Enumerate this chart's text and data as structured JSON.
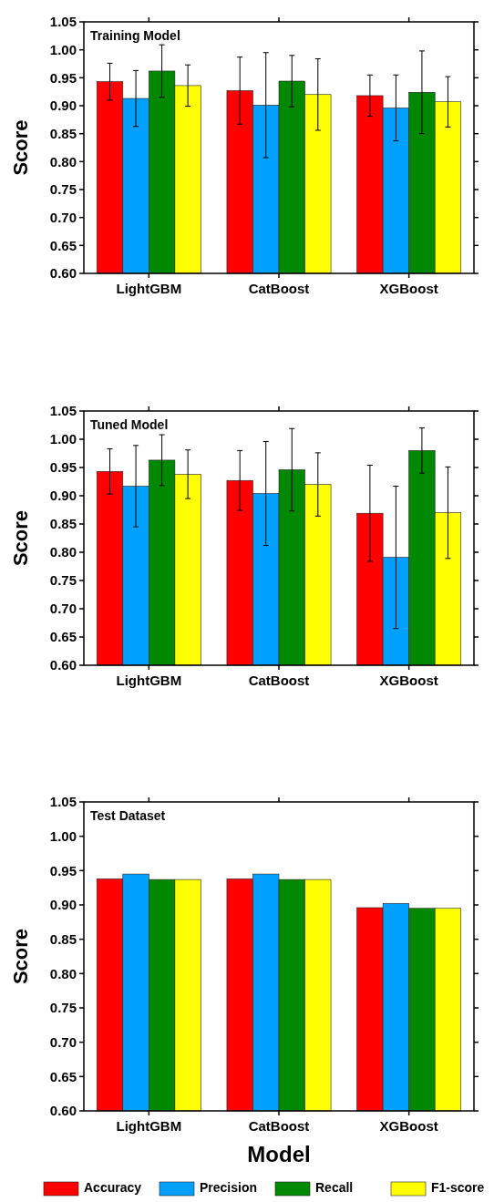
{
  "chart_data": [
    {
      "type": "bar",
      "title": "Training Model",
      "ylabel": "Score",
      "categories": [
        "LightGBM",
        "CatBoost",
        "XGBoost"
      ],
      "ylim": [
        0.6,
        1.05
      ],
      "yticks": [
        {
          "value": 0.6,
          "label": "0.60"
        },
        {
          "value": 0.65,
          "label": "0.65"
        },
        {
          "value": 0.7,
          "label": "0.70"
        },
        {
          "value": 0.75,
          "label": "0.75"
        },
        {
          "value": 0.8,
          "label": "0.80"
        },
        {
          "value": 0.85,
          "label": "0.85"
        },
        {
          "value": 0.9,
          "label": "0.90"
        },
        {
          "value": 0.95,
          "label": "0.95"
        },
        {
          "value": 1.0,
          "label": "1.00"
        },
        {
          "value": 1.05,
          "label": "1.05"
        }
      ],
      "series": [
        {
          "color": "#ff0000",
          "values": [
            0.943,
            0.927,
            0.918
          ],
          "errors": [
            0.033,
            0.06,
            0.037
          ]
        },
        {
          "color": "#00a0ff",
          "values": [
            0.913,
            0.901,
            0.896
          ],
          "errors": [
            0.05,
            0.094,
            0.059
          ]
        },
        {
          "color": "#008800",
          "values": [
            0.962,
            0.944,
            0.924
          ],
          "errors": [
            0.047,
            0.046,
            0.074
          ]
        },
        {
          "color": "#ffff00",
          "values": [
            0.936,
            0.92,
            0.907
          ],
          "errors": [
            0.037,
            0.064,
            0.045
          ]
        }
      ]
    },
    {
      "type": "bar",
      "title": "Tuned Model",
      "ylabel": "Score",
      "categories": [
        "LightGBM",
        "CatBoost",
        "XGBoost"
      ],
      "ylim": [
        0.6,
        1.05
      ],
      "yticks": [
        {
          "value": 0.6,
          "label": "0.60"
        },
        {
          "value": 0.65,
          "label": "0.65"
        },
        {
          "value": 0.7,
          "label": "0.70"
        },
        {
          "value": 0.75,
          "label": "0.75"
        },
        {
          "value": 0.8,
          "label": "0.80"
        },
        {
          "value": 0.85,
          "label": "0.85"
        },
        {
          "value": 0.9,
          "label": "0.90"
        },
        {
          "value": 0.95,
          "label": "0.95"
        },
        {
          "value": 1.0,
          "label": "1.00"
        },
        {
          "value": 1.05,
          "label": "1.05"
        }
      ],
      "series": [
        {
          "color": "#ff0000",
          "values": [
            0.943,
            0.927,
            0.869
          ],
          "errors": [
            0.04,
            0.053,
            0.085
          ]
        },
        {
          "color": "#00a0ff",
          "values": [
            0.917,
            0.904,
            0.791
          ],
          "errors": [
            0.072,
            0.092,
            0.126
          ]
        },
        {
          "color": "#008800",
          "values": [
            0.963,
            0.946,
            0.98
          ],
          "errors": [
            0.045,
            0.073,
            0.04
          ]
        },
        {
          "color": "#ffff00",
          "values": [
            0.938,
            0.92,
            0.87
          ],
          "errors": [
            0.043,
            0.056,
            0.081
          ]
        }
      ]
    },
    {
      "type": "bar",
      "title": "Test Dataset",
      "ylabel": "Score",
      "xlabel": "Model",
      "categories": [
        "LightGBM",
        "CatBoost",
        "XGBoost"
      ],
      "ylim": [
        0.6,
        1.05
      ],
      "yticks": [
        {
          "value": 0.6,
          "label": "0.60"
        },
        {
          "value": 0.65,
          "label": "0.65"
        },
        {
          "value": 0.7,
          "label": "0.70"
        },
        {
          "value": 0.75,
          "label": "0.75"
        },
        {
          "value": 0.8,
          "label": "0.80"
        },
        {
          "value": 0.85,
          "label": "0.85"
        },
        {
          "value": 0.9,
          "label": "0.90"
        },
        {
          "value": 0.95,
          "label": "0.95"
        },
        {
          "value": 1.0,
          "label": "1.00"
        },
        {
          "value": 1.05,
          "label": "1.05"
        }
      ],
      "legend": "bottom",
      "series": [
        {
          "name": "Accuracy",
          "color": "#ff0000",
          "values": [
            0.938,
            0.938,
            0.896
          ]
        },
        {
          "name": "Precision",
          "color": "#00a0ff",
          "values": [
            0.945,
            0.945,
            0.902
          ]
        },
        {
          "name": "Recall",
          "color": "#008800",
          "values": [
            0.937,
            0.937,
            0.895
          ]
        },
        {
          "name": "F1-score",
          "color": "#ffff00",
          "values": [
            0.937,
            0.937,
            0.895
          ]
        }
      ]
    }
  ]
}
